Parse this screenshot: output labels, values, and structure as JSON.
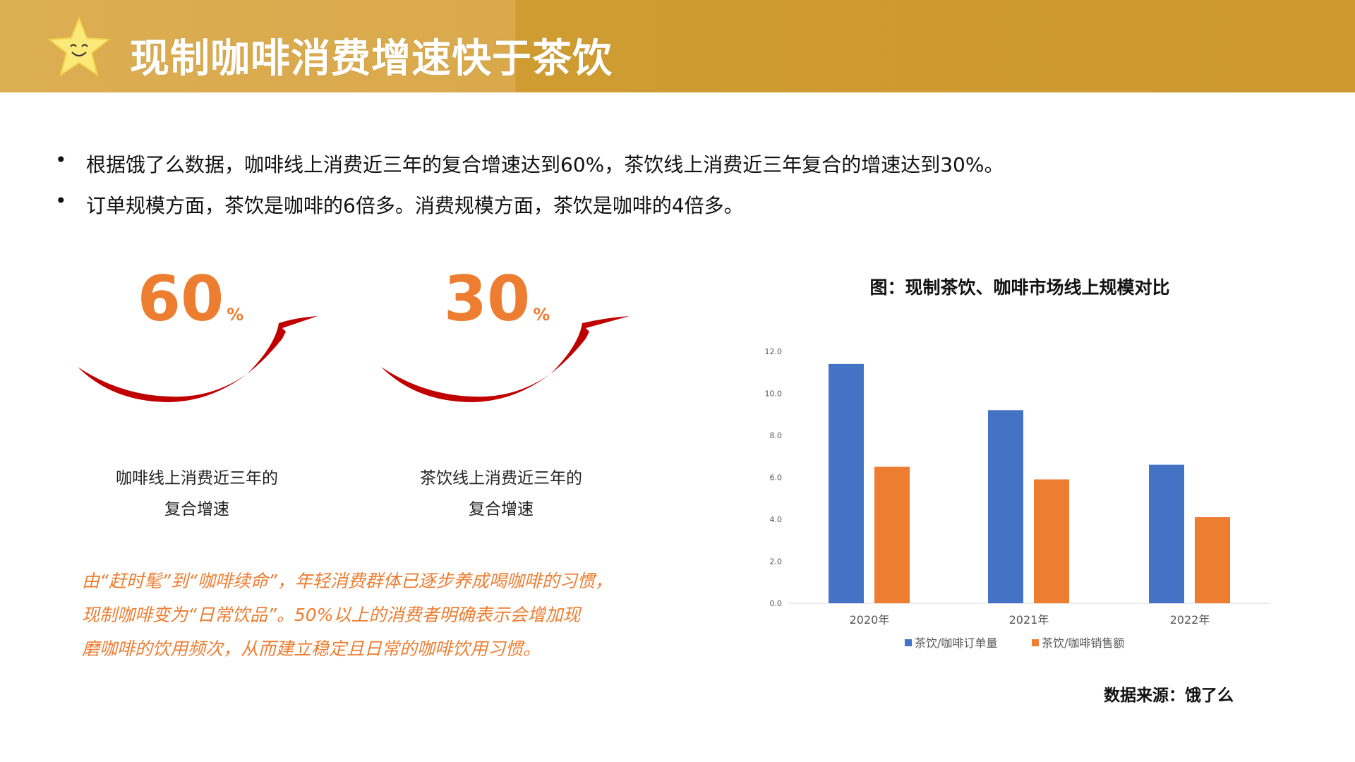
{
  "header": {
    "title": "现制咖啡消费增速快于茶饮",
    "icon": "smiling-star-icon",
    "background_color": "#d9a94b"
  },
  "bullets": [
    "根据饿了么数据，咖啡线上消费近三年的复合增速达到60%，茶饮线上消费近三年复合的增速达到30%。",
    "订单规模方面，茶饮是咖啡的6倍多。消费规模方面，茶饮是咖啡的4倍多。"
  ],
  "stats": [
    {
      "value": "60",
      "unit": "%",
      "label_line1": "咖啡线上消费近三年的",
      "label_line2": "复合增速"
    },
    {
      "value": "30",
      "unit": "%",
      "label_line1": "茶饮线上消费近三年的",
      "label_line2": "复合增速"
    }
  ],
  "note_lines": [
    "由“赶时髦”到“咖啡续命”，年轻消费群体已逐步养成喝咖啡的习惯，",
    "现制咖啡变为“日常饮品”。50%以上的消费者明确表示会增加现",
    "磨咖啡的饮用频次，从而建立稳定且日常的咖啡饮用习惯。"
  ],
  "colors": {
    "accent": "#ed7d31",
    "arrow": "#c00000",
    "series1": "#4472c4",
    "series2": "#ed7d31"
  },
  "chart_data": {
    "type": "bar",
    "title": "图：现制茶饮、咖啡市场线上规模对比",
    "categories": [
      "2020年",
      "2021年",
      "2022年"
    ],
    "series": [
      {
        "name": "茶饮/咖啡订单量",
        "values": [
          11.4,
          9.2,
          6.6
        ]
      },
      {
        "name": "茶饮/咖啡销售额",
        "values": [
          6.5,
          5.9,
          4.1
        ]
      }
    ],
    "ylim": [
      0,
      12
    ],
    "yticks": [
      "0.0",
      "2.0",
      "4.0",
      "6.0",
      "8.0",
      "10.0",
      "12.0"
    ],
    "grid": false,
    "legend": "bottom"
  },
  "source": "数据来源：饿了么"
}
